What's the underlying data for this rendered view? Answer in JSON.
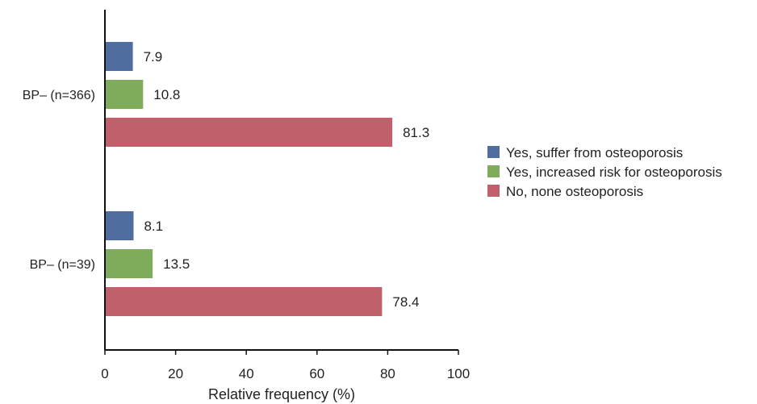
{
  "chart_data": {
    "type": "bar",
    "orientation": "horizontal",
    "categories": [
      "BP– (n=366)",
      "BP– (n=39)"
    ],
    "series": [
      {
        "name": "Yes, suffer from osteoporosis",
        "values": [
          7.9,
          8.1
        ],
        "color": "#4f6d9f"
      },
      {
        "name": "Yes, increased risk for osteoporosis",
        "values": [
          10.8,
          13.5
        ],
        "color": "#7fac5a"
      },
      {
        "name": "No, none osteoporosis",
        "values": [
          81.3,
          78.4
        ],
        "color": "#c0606a"
      }
    ],
    "data_labels": [
      [
        "7.9",
        "10.8",
        "81.3"
      ],
      [
        "8.1",
        "13.5",
        "78.4"
      ]
    ],
    "xlabel": "Relative frequency (%)",
    "ylabel": "",
    "xlim": [
      0,
      100
    ],
    "xticks": [
      "0",
      "20",
      "40",
      "60",
      "80",
      "100"
    ],
    "grid": false,
    "legend_position": "right"
  }
}
